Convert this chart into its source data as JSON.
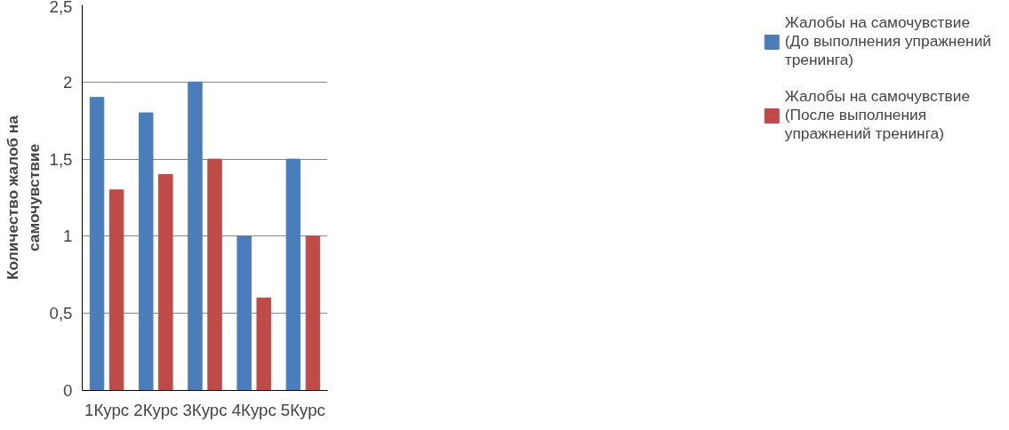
{
  "chart_data": {
    "type": "bar",
    "ylabel": "Количество жалоб на\nсамочувствие",
    "categories": [
      "1Курс",
      "2Курс",
      "3Курс",
      "4Курс",
      "5Курс"
    ],
    "series": [
      {
        "name": "Жалобы на самочувствие\n(До выполнения упражнений\nтренинга)",
        "color": "#4a7ebb",
        "values": [
          1.9,
          1.8,
          2.0,
          1.0,
          1.5
        ]
      },
      {
        "name": "Жалобы на самочувствие\n(После выполнения\nупражнений тренинга)",
        "color": "#be4b48",
        "values": [
          1.3,
          1.4,
          1.5,
          0.6,
          1.0
        ]
      }
    ],
    "ylim": [
      0,
      2.5
    ],
    "yticks": [
      {
        "value": 0,
        "label": "0"
      },
      {
        "value": 0.5,
        "label": "0,5"
      },
      {
        "value": 1,
        "label": "1"
      },
      {
        "value": 1.5,
        "label": "1,5"
      },
      {
        "value": 2,
        "label": "2"
      },
      {
        "value": 2.5,
        "label": "2,5"
      }
    ],
    "grid": "y",
    "legend": "right"
  }
}
